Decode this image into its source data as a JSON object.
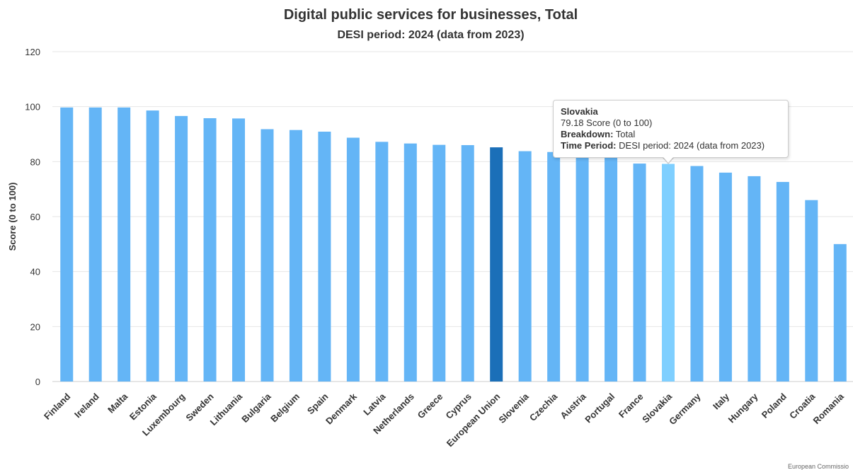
{
  "chart_data": {
    "type": "bar",
    "title": "Digital public services for businesses, Total",
    "subtitle": "DESI period: 2024 (data from 2023)",
    "xlabel": "",
    "ylabel": "Score (0 to 100)",
    "ylim": [
      0,
      120
    ],
    "yticks": [
      0,
      20,
      40,
      60,
      80,
      100,
      120
    ],
    "grid": true,
    "categories": [
      "Finland",
      "Ireland",
      "Malta",
      "Estonia",
      "Luxembourg",
      "Sweden",
      "Lithuania",
      "Bulgaria",
      "Belgium",
      "Spain",
      "Denmark",
      "Latvia",
      "Netherlands",
      "Greece",
      "Cyprus",
      "European Union",
      "Slovenia",
      "Czechia",
      "Austria",
      "Portugal",
      "France",
      "Slovakia",
      "Germany",
      "Italy",
      "Hungary",
      "Poland",
      "Croatia",
      "Romania"
    ],
    "values": [
      99.7,
      99.7,
      99.7,
      98.6,
      96.6,
      95.8,
      95.7,
      91.8,
      91.5,
      90.9,
      88.7,
      87.2,
      86.6,
      86.1,
      86.0,
      85.2,
      83.8,
      83.5,
      83.0,
      82.0,
      79.3,
      79.18,
      78.4,
      76.0,
      74.7,
      72.6,
      66.0,
      50.0
    ],
    "colors": {
      "bar": "#64b5f6",
      "highlight": "#1b6fb8",
      "hover": "#7fcfff"
    },
    "highlight_category": "European Union",
    "hover_category": "Slovakia"
  },
  "tooltip": {
    "title": "Slovakia",
    "value_line": "79.18 Score (0 to 100)",
    "breakdown_label": "Breakdown:",
    "breakdown_value": "Total",
    "period_label": "Time Period:",
    "period_value": "DESI period: 2024 (data from 2023)"
  },
  "credit": "European Commissio"
}
